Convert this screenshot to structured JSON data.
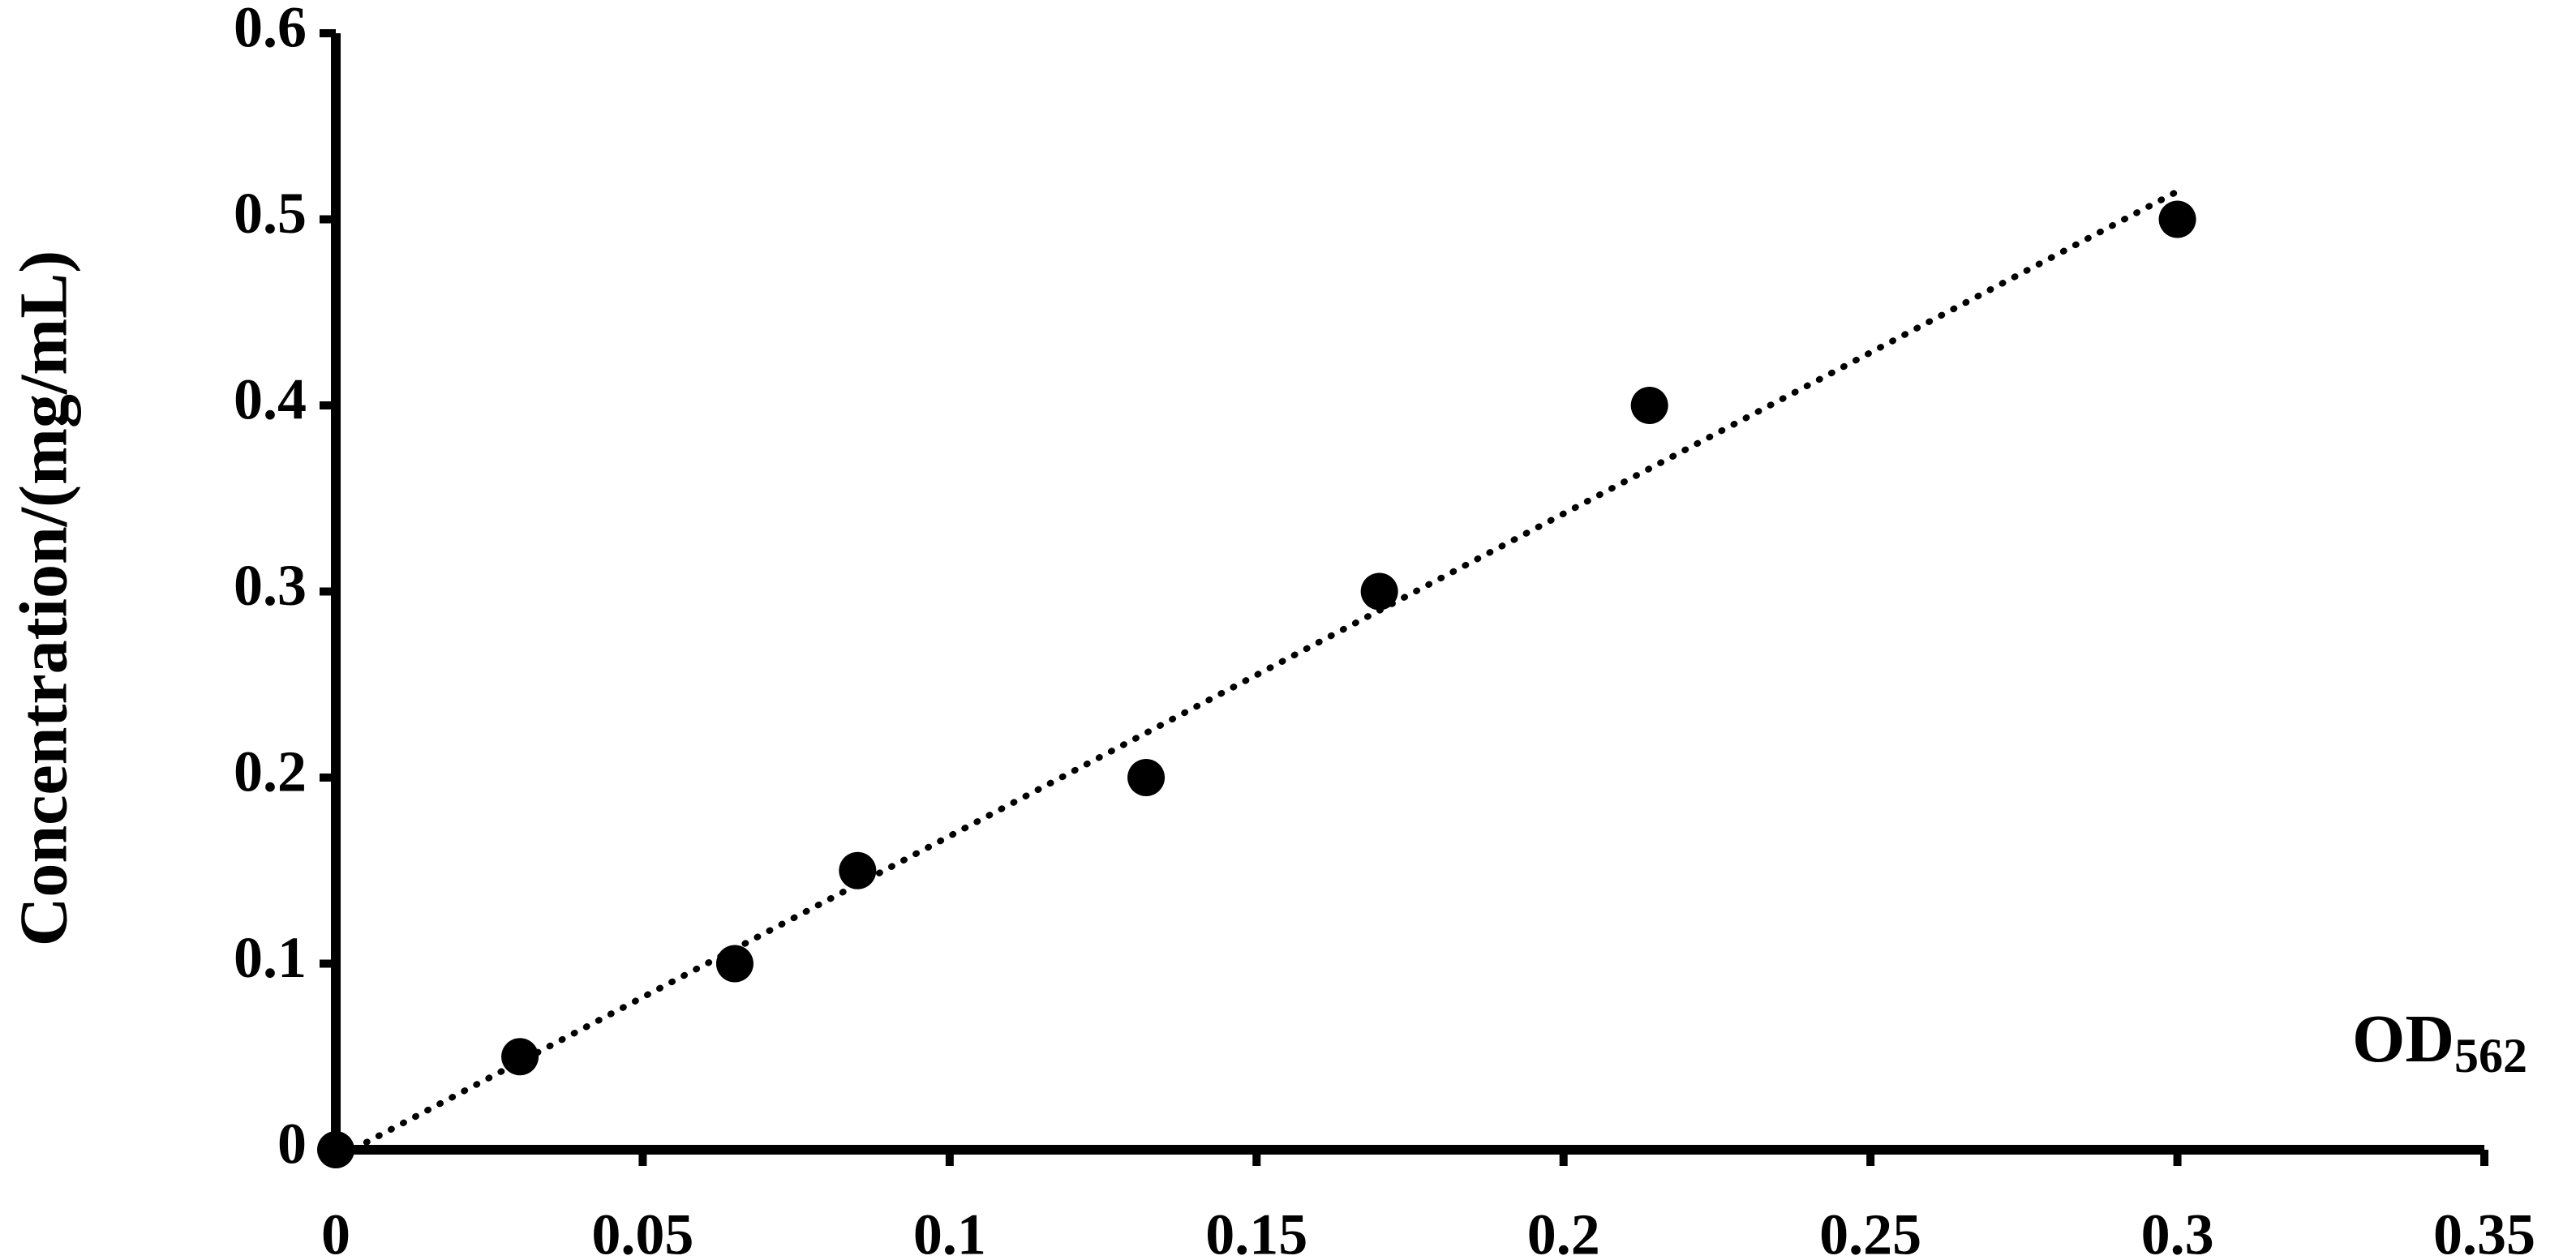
{
  "chart_data": {
    "type": "scatter",
    "y_label": "Concentration/(mg/mL)",
    "x_label": "OD",
    "x_label_sub": "562",
    "x": [
      0,
      0.03,
      0.065,
      0.085,
      0.132,
      0.17,
      0.214,
      0.3
    ],
    "values": [
      0,
      0.05,
      0.1,
      0.15,
      0.2,
      0.3,
      0.4,
      0.5
    ],
    "color": "#000000",
    "trendline": {
      "x": [
        0.005,
        0.3
      ],
      "y": [
        0.004,
        0.515
      ]
    },
    "xlim": [
      0,
      0.35
    ],
    "ylim": [
      0,
      0.6
    ],
    "xticks": [
      0,
      0.05,
      0.1,
      0.15,
      0.2,
      0.25,
      0.3,
      0.35
    ],
    "yticks": [
      0,
      0.1,
      0.2,
      0.3,
      0.4,
      0.5,
      0.6
    ],
    "grid": false
  }
}
